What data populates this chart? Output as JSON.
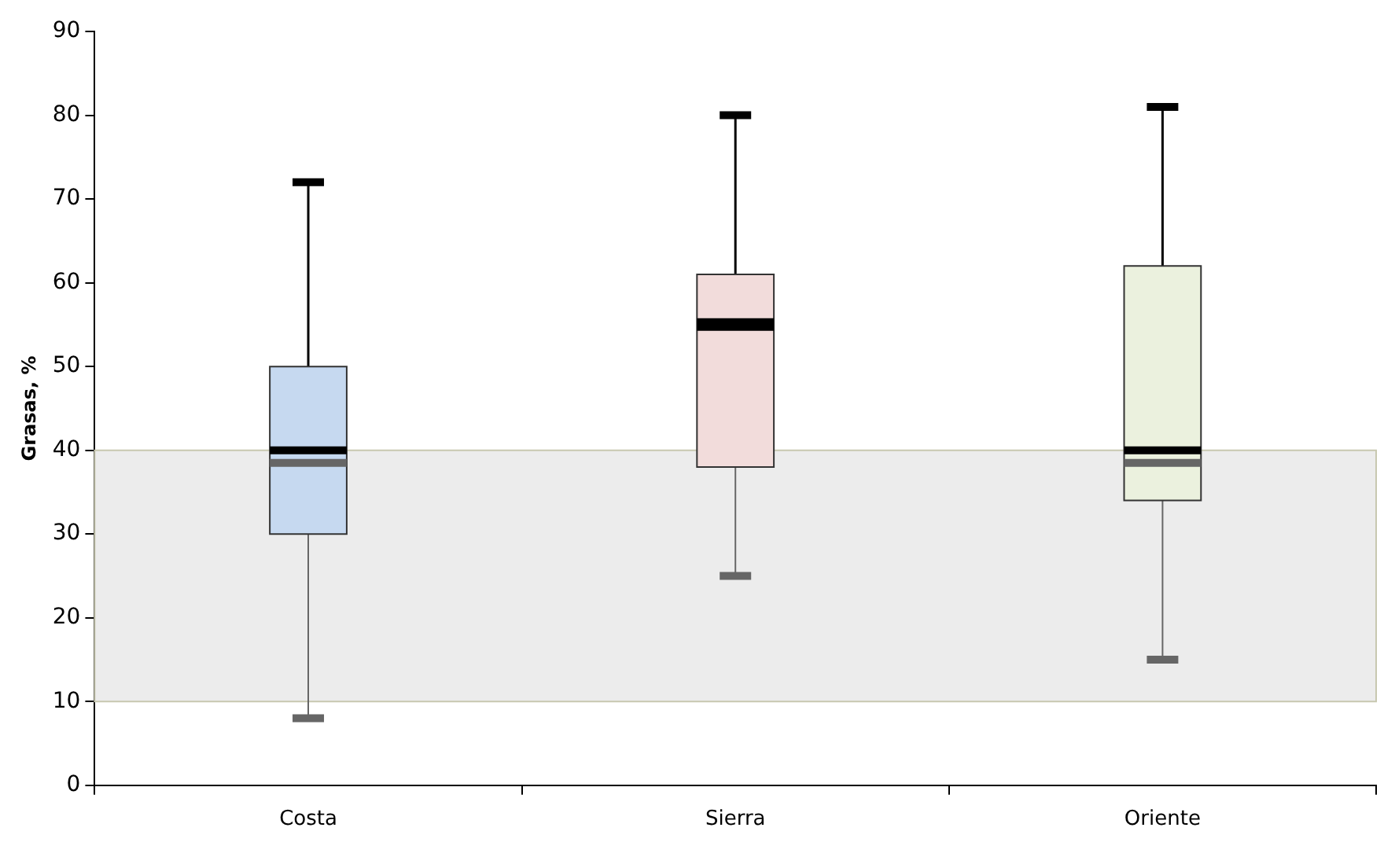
{
  "chart_data": {
    "type": "box",
    "ylabel": "Grasas, %",
    "categories": [
      "Costa",
      "Sierra",
      "Oriente"
    ],
    "boxes": [
      {
        "low": 8,
        "q1": 30,
        "median": 40,
        "q3": 50,
        "high": 72,
        "mean": 38.5
      },
      {
        "low": 25,
        "q1": 38,
        "median": 55,
        "q3": 61,
        "high": 80
      },
      {
        "low": 15,
        "q1": 34,
        "median": 40,
        "q3": 62,
        "high": 81,
        "mean": 38.5
      }
    ],
    "colors": [
      "#c6d9f0",
      "#f2dcdb",
      "#ebf1de"
    ],
    "ylim": [
      0,
      90
    ],
    "yticks": [
      0,
      10,
      20,
      30,
      40,
      50,
      60,
      70,
      80,
      90
    ],
    "bands": [
      {
        "axis": "y",
        "from": 10,
        "to": 40,
        "color": "#ececec"
      }
    ],
    "grid": false,
    "legend": false
  }
}
